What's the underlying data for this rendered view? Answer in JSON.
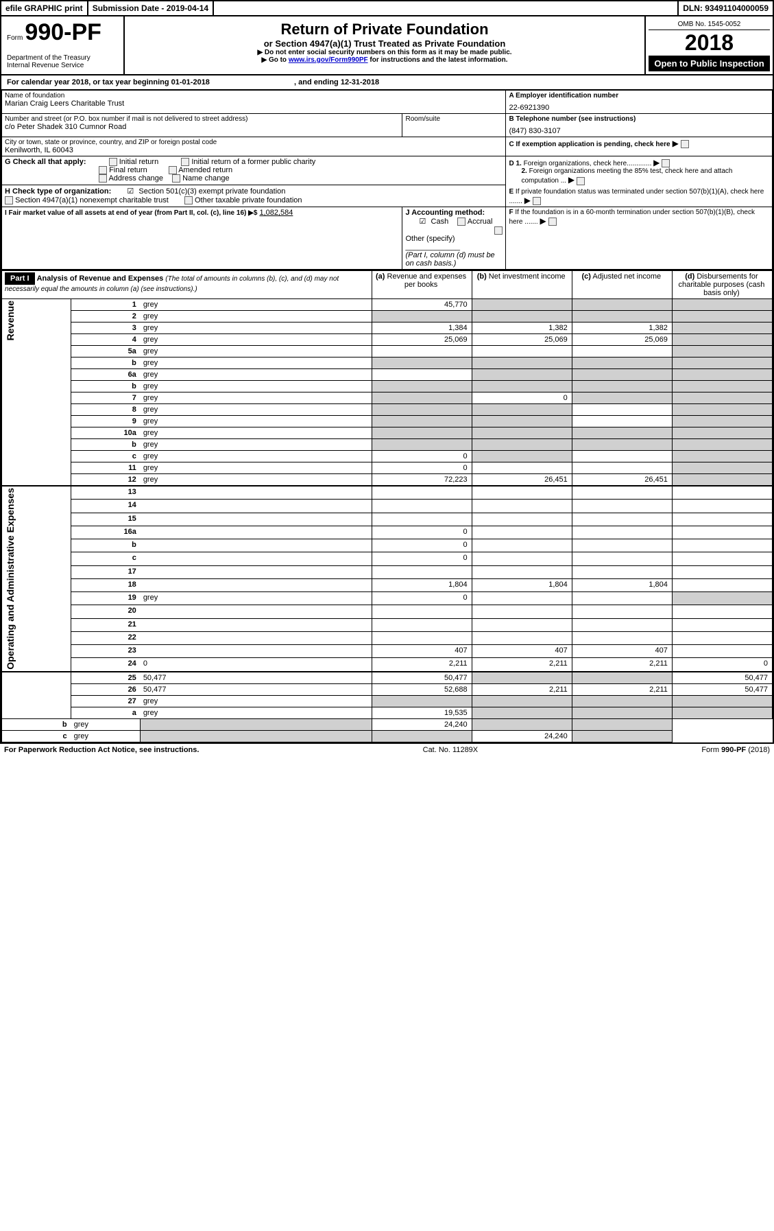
{
  "topbar": {
    "efile": "efile GRAPHIC print",
    "subdate_lbl": "Submission Date - ",
    "subdate": "2019-04-14",
    "dln_lbl": "DLN: ",
    "dln": "93491104000059"
  },
  "header": {
    "form_lbl": "Form",
    "form_no": "990-PF",
    "dept": "Department of the Treasury",
    "irs": "Internal Revenue Service",
    "title": "Return of Private Foundation",
    "subtitle": "or Section 4947(a)(1) Trust Treated as Private Foundation",
    "warn": "▶ Do not enter social security numbers on this form as it may be made public.",
    "goto_pre": "▶ Go to ",
    "goto_link": "www.irs.gov/Form990PF",
    "goto_post": " for instructions and the latest information.",
    "omb": "OMB No. 1545-0052",
    "year": "2018",
    "open": "Open to Public Inspection"
  },
  "calyear": {
    "pre": "For calendar year 2018, or tax year beginning ",
    "begin": "01-01-2018",
    "mid": ", and ending ",
    "end": "12-31-2018"
  },
  "info": {
    "name_lbl": "Name of foundation",
    "name": "Marian Craig Leers Charitable Trust",
    "ein_lbl": "A Employer identification number",
    "ein": "22-6921390",
    "addr_lbl": "Number and street (or P.O. box number if mail is not delivered to street address)",
    "addr": "c/o Peter Shadek 310 Cumnor Road",
    "room_lbl": "Room/suite",
    "tel_lbl": "B Telephone number (see instructions)",
    "tel": "(847) 830-3107",
    "city_lbl": "City or town, state or province, country, and ZIP or foreign postal code",
    "city": "Kenilworth, IL  60043",
    "c_lbl": "C If exemption application is pending, check here"
  },
  "g": {
    "lbl": "G Check all that apply:",
    "o1": "Initial return",
    "o2": "Initial return of a former public charity",
    "o3": "Final return",
    "o4": "Amended return",
    "o5": "Address change",
    "o6": "Name change"
  },
  "h": {
    "lbl": "H Check type of organization:",
    "o1": "Section 501(c)(3) exempt private foundation",
    "o2": "Section 4947(a)(1) nonexempt charitable trust",
    "o3": "Other taxable private foundation"
  },
  "d": {
    "d1_lbl": "D 1.",
    "d1": "Foreign organizations, check here.............",
    "d2_lbl": "2.",
    "d2": "Foreign organizations meeting the 85% test, check here and attach computation ...",
    "e_lbl": "E",
    "e": "If private foundation status was terminated under section 507(b)(1)(A), check here .......",
    "f_lbl": "F",
    "f": "If the foundation is in a 60-month termination under section 507(b)(1)(B), check here ......."
  },
  "i": {
    "lbl": "I Fair market value of all assets at end of year (from Part II, col. (c), line 16) ▶$",
    "val": "1,082,584"
  },
  "j": {
    "lbl": "J Accounting method:",
    "cash": "Cash",
    "accrual": "Accrual",
    "other": "Other (specify)",
    "note": "(Part I, column (d) must be on cash basis.)"
  },
  "part1": {
    "hdr": "Part I",
    "title": "Analysis of Revenue and Expenses",
    "note": "(The total of amounts in columns (b), (c), and (d) may not necessarily equal the amounts in column (a) (see instructions).)",
    "col_a": "Revenue and expenses per books",
    "col_b": "Net investment income",
    "col_c": "Adjusted net income",
    "col_d": "Disbursements for charitable purposes (cash basis only)"
  },
  "sections": {
    "revenue": "Revenue",
    "expenses": "Operating and Administrative Expenses"
  },
  "rows": [
    {
      "n": "1",
      "d": "grey",
      "a": "45,770",
      "b": "grey",
      "c": "grey"
    },
    {
      "n": "2",
      "d": "grey",
      "a": "grey",
      "b": "grey",
      "c": "grey"
    },
    {
      "n": "3",
      "d": "grey",
      "a": "1,384",
      "b": "1,382",
      "c": "1,382"
    },
    {
      "n": "4",
      "d": "grey",
      "a": "25,069",
      "b": "25,069",
      "c": "25,069"
    },
    {
      "n": "5a",
      "d": "grey",
      "a": "",
      "b": "",
      "c": ""
    },
    {
      "n": "b",
      "d": "grey",
      "a": "grey",
      "b": "grey",
      "c": "grey"
    },
    {
      "n": "6a",
      "d": "grey",
      "a": "",
      "b": "grey",
      "c": "grey"
    },
    {
      "n": "b",
      "d": "grey",
      "a": "grey",
      "b": "grey",
      "c": "grey"
    },
    {
      "n": "7",
      "d": "grey",
      "a": "grey",
      "b": "0",
      "c": "grey"
    },
    {
      "n": "8",
      "d": "grey",
      "a": "grey",
      "b": "grey",
      "c": ""
    },
    {
      "n": "9",
      "d": "grey",
      "a": "grey",
      "b": "grey",
      "c": ""
    },
    {
      "n": "10a",
      "d": "grey",
      "a": "grey",
      "b": "grey",
      "c": "grey"
    },
    {
      "n": "b",
      "d": "grey",
      "a": "grey",
      "b": "grey",
      "c": "grey"
    },
    {
      "n": "c",
      "d": "grey",
      "a": "0",
      "b": "grey",
      "c": ""
    },
    {
      "n": "11",
      "d": "grey",
      "a": "0",
      "b": "",
      "c": ""
    },
    {
      "n": "12",
      "d": "grey",
      "a": "72,223",
      "b": "26,451",
      "c": "26,451"
    },
    {
      "n": "13",
      "d": "",
      "a": "",
      "b": "",
      "c": ""
    },
    {
      "n": "14",
      "d": "",
      "a": "",
      "b": "",
      "c": ""
    },
    {
      "n": "15",
      "d": "",
      "a": "",
      "b": "",
      "c": ""
    },
    {
      "n": "16a",
      "d": "",
      "a": "0",
      "b": "",
      "c": ""
    },
    {
      "n": "b",
      "d": "",
      "a": "0",
      "b": "",
      "c": ""
    },
    {
      "n": "c",
      "d": "",
      "a": "0",
      "b": "",
      "c": ""
    },
    {
      "n": "17",
      "d": "",
      "a": "",
      "b": "",
      "c": ""
    },
    {
      "n": "18",
      "d": "",
      "a": "1,804",
      "b": "1,804",
      "c": "1,804"
    },
    {
      "n": "19",
      "d": "grey",
      "a": "0",
      "b": "",
      "c": ""
    },
    {
      "n": "20",
      "d": "",
      "a": "",
      "b": "",
      "c": ""
    },
    {
      "n": "21",
      "d": "",
      "a": "",
      "b": "",
      "c": ""
    },
    {
      "n": "22",
      "d": "",
      "a": "",
      "b": "",
      "c": ""
    },
    {
      "n": "23",
      "d": "",
      "a": "407",
      "b": "407",
      "c": "407"
    },
    {
      "n": "24",
      "d": "0",
      "a": "2,211",
      "b": "2,211",
      "c": "2,211"
    },
    {
      "n": "25",
      "d": "50,477",
      "a": "50,477",
      "b": "grey",
      "c": "grey"
    },
    {
      "n": "26",
      "d": "50,477",
      "a": "52,688",
      "b": "2,211",
      "c": "2,211"
    },
    {
      "n": "27",
      "d": "grey",
      "a": "grey",
      "b": "grey",
      "c": "grey"
    },
    {
      "n": "a",
      "d": "grey",
      "a": "19,535",
      "b": "grey",
      "c": "grey"
    },
    {
      "n": "b",
      "d": "grey",
      "a": "grey",
      "b": "24,240",
      "c": "grey"
    },
    {
      "n": "c",
      "d": "grey",
      "a": "grey",
      "b": "grey",
      "c": "24,240"
    }
  ],
  "footer": {
    "left": "For Paperwork Reduction Act Notice, see instructions.",
    "mid": "Cat. No. 11289X",
    "right": "Form <b>990-PF</b> (2018)"
  }
}
